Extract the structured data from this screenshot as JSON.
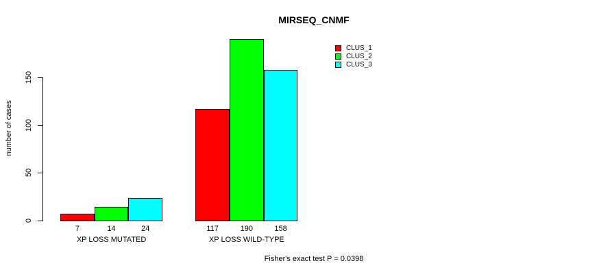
{
  "title": "MIRSEQ_CNMF",
  "footer": "Fisher's exact test P = 0.0398",
  "chart_data": {
    "type": "bar",
    "title": "MIRSEQ_CNMF",
    "ylabel": "number of cases",
    "xlabel": "",
    "categories": [
      "XP LOSS MUTATED",
      "XP LOSS WILD-TYPE"
    ],
    "series": [
      {
        "name": "CLUS_1",
        "color": "#FF0000",
        "values": [
          7,
          117
        ]
      },
      {
        "name": "CLUS_2",
        "color": "#00FF00",
        "values": [
          14,
          190
        ]
      },
      {
        "name": "CLUS_3",
        "color": "#00FFFF",
        "values": [
          24,
          158
        ]
      }
    ],
    "bar_value_labels": [
      [
        7,
        14,
        24
      ],
      [
        117,
        190,
        158
      ]
    ],
    "yticks": [
      0,
      50,
      100,
      150
    ],
    "ylim": [
      0,
      190
    ],
    "grid": false,
    "legend_position": "top-right",
    "annotation": "Fisher's exact test P = 0.0398"
  }
}
